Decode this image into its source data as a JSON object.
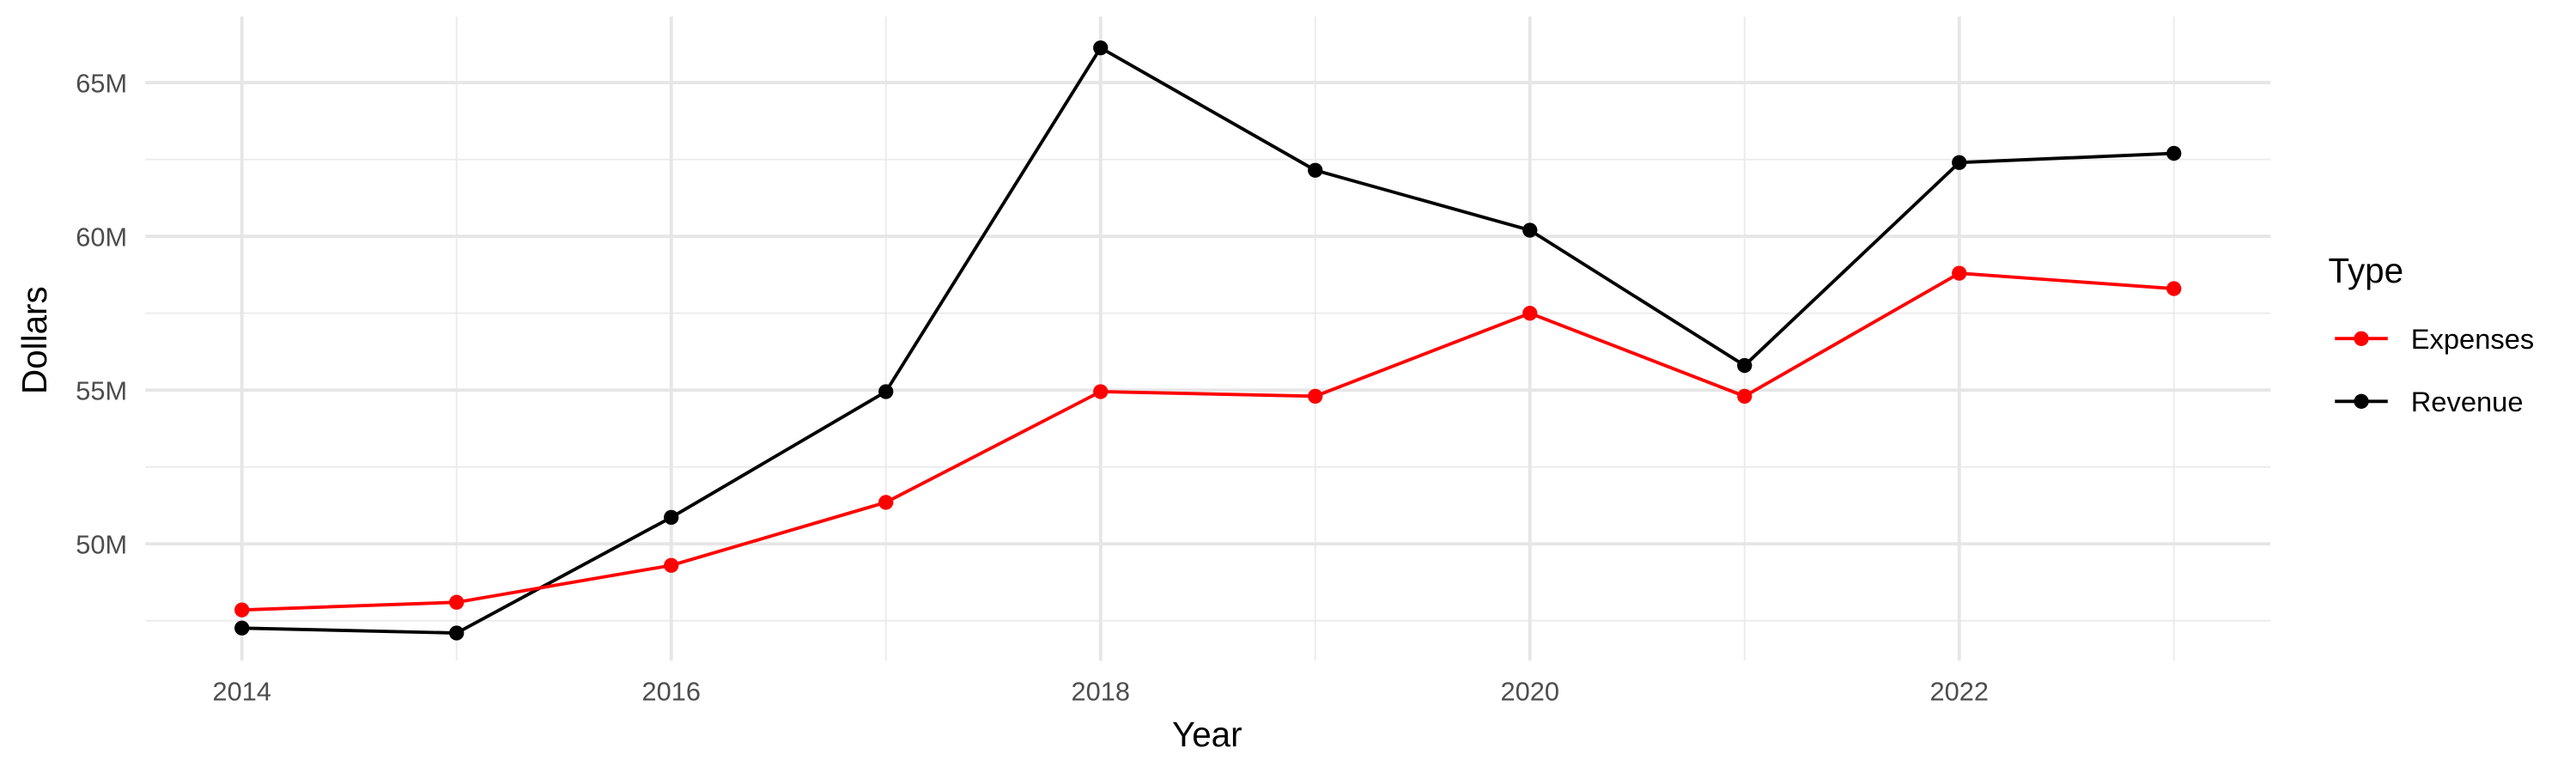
{
  "chart_data": {
    "type": "line",
    "x_label": "Year",
    "y_label": "Dollars",
    "legend_title": "Type",
    "x": [
      2014,
      2015,
      2016,
      2017,
      2018,
      2019,
      2020,
      2021,
      2022,
      2023
    ],
    "series": [
      {
        "name": "Expenses",
        "color": "#ff0000",
        "values": [
          47850000,
          48100000,
          49300000,
          51350000,
          54950000,
          54800000,
          57500000,
          54800000,
          58800000,
          58300000
        ]
      },
      {
        "name": "Revenue",
        "color": "#000000",
        "values": [
          47260000,
          47100000,
          50860000,
          54950000,
          66130000,
          62150000,
          60200000,
          55800000,
          62400000,
          62700000
        ]
      }
    ],
    "xlim": [
      2013.55,
      2023.45
    ],
    "xticks": [
      2014,
      2016,
      2018,
      2020,
      2022
    ],
    "minor_xticks": [
      2015,
      2017,
      2019,
      2021,
      2023
    ],
    "ylim": [
      46200000,
      67150000
    ],
    "yticks": [
      {
        "value": 50000000,
        "label": "50M"
      },
      {
        "value": 55000000,
        "label": "55M"
      },
      {
        "value": 60000000,
        "label": "60M"
      },
      {
        "value": 65000000,
        "label": "65M"
      }
    ],
    "minor_yticks": [
      47500000,
      52500000,
      57500000,
      62500000
    ],
    "grid": true,
    "legend": "right"
  }
}
